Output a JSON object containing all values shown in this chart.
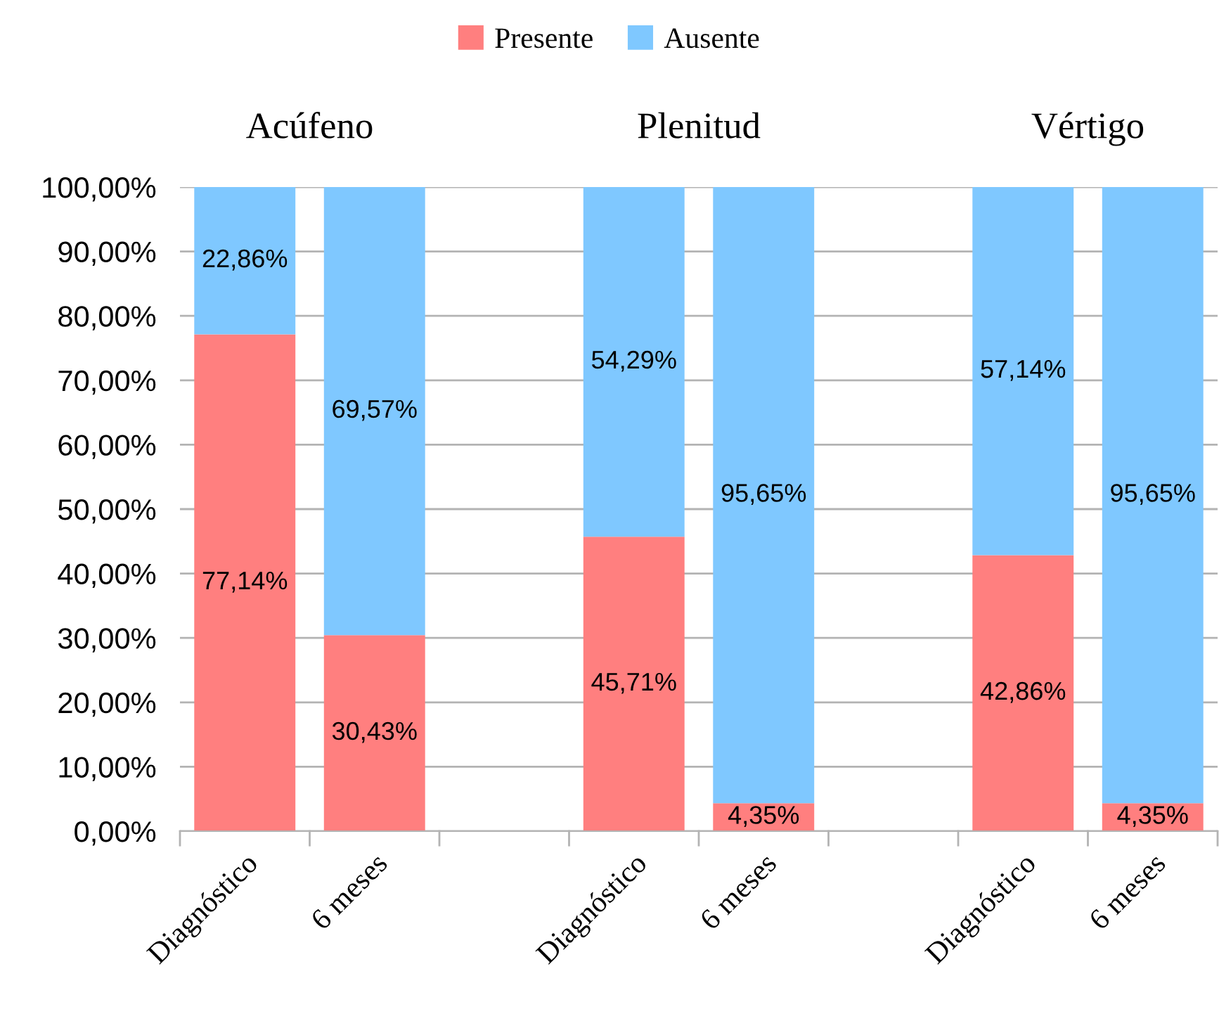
{
  "chart_data": {
    "type": "bar",
    "stacked": true,
    "categories": [
      "Diagnóstico",
      "6 meses",
      null,
      "Diagnóstico",
      "6 meses",
      null,
      "Diagnóstico",
      "6 meses"
    ],
    "series": [
      {
        "name": "Presente",
        "color": "#ff7f7f",
        "values": [
          77.14,
          30.43,
          null,
          45.71,
          4.35,
          null,
          42.86,
          4.35
        ],
        "value_labels": [
          "77,14%",
          "30,43%",
          null,
          "45,71%",
          "4,35%",
          null,
          "42,86%",
          "4,35%"
        ]
      },
      {
        "name": "Ausente",
        "color": "#7fc8ff",
        "values": [
          22.86,
          69.57,
          null,
          54.29,
          95.65,
          null,
          57.14,
          95.65
        ],
        "value_labels": [
          "22,86%",
          "69,57%",
          null,
          "54,29%",
          "95,65%",
          null,
          "57,14%",
          "95,65%"
        ]
      }
    ],
    "annotations": [
      "Acúfeno",
      "Plenitud",
      "Vértigo"
    ],
    "ylim": [
      0,
      100
    ],
    "yticks": [
      {
        "value": 0,
        "label": "0,00%"
      },
      {
        "value": 10,
        "label": "10,00%"
      },
      {
        "value": 20,
        "label": "20,00%"
      },
      {
        "value": 30,
        "label": "30,00%"
      },
      {
        "value": 40,
        "label": "40,00%"
      },
      {
        "value": 50,
        "label": "50,00%"
      },
      {
        "value": 60,
        "label": "60,00%"
      },
      {
        "value": 70,
        "label": "70,00%"
      },
      {
        "value": 80,
        "label": "80,00%"
      },
      {
        "value": 90,
        "label": "90,00%"
      },
      {
        "value": 100,
        "label": "100,00%"
      }
    ],
    "grid": "y",
    "legend": "top"
  }
}
